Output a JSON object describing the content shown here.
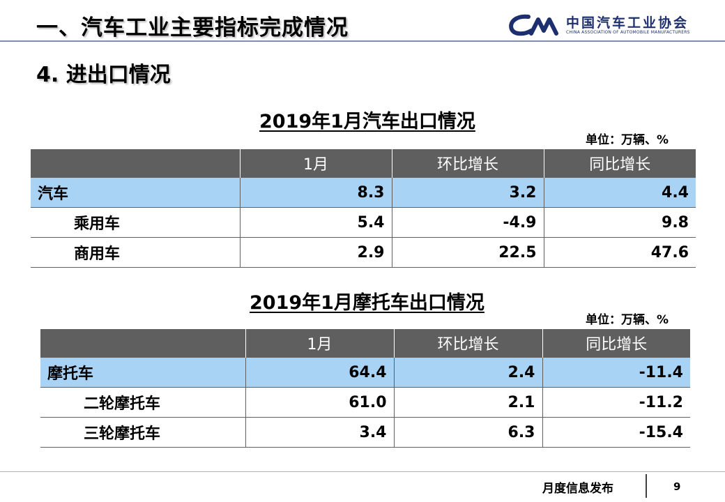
{
  "header": {
    "title": "一、汽车工业主要指标完成情况",
    "logo_cn": "中国汽车工业协会",
    "logo_en": "CHINA ASSOCIATION OF AUTOMOBILE MANUFACTURERS"
  },
  "section_title": "4. 进出口情况",
  "auto_table": {
    "title": "2019年1月汽车出口情况",
    "unit": "单位：万辆、%",
    "headers": [
      "",
      "1月",
      "环比增长",
      "同比增长"
    ],
    "rows": [
      {
        "name": "汽车",
        "jan": "8.3",
        "mom": "3.2",
        "yoy": "4.4"
      },
      {
        "name": "乘用车",
        "jan": "5.4",
        "mom": "-4.9",
        "yoy": "9.8"
      },
      {
        "name": "商用车",
        "jan": "2.9",
        "mom": "22.5",
        "yoy": "47.6"
      }
    ]
  },
  "moto_table": {
    "title": "2019年1月摩托车出口情况",
    "unit": "单位：万辆、%",
    "headers": [
      "",
      "1月",
      "环比增长",
      "同比增长"
    ],
    "rows": [
      {
        "name": "摩托车",
        "jan": "64.4",
        "mom": "2.4",
        "yoy": "-11.4"
      },
      {
        "name": "二轮摩托车",
        "jan": "61.0",
        "mom": "2.1",
        "yoy": "-11.2"
      },
      {
        "name": "三轮摩托车",
        "jan": "3.4",
        "mom": "6.3",
        "yoy": "-15.4"
      }
    ]
  },
  "footer": {
    "label": "月度信息发布",
    "page": "9"
  },
  "colors": {
    "header_row": "#5f5f5f",
    "highlight_row": "#a9d3f5",
    "brand": "#1d2f6e"
  }
}
